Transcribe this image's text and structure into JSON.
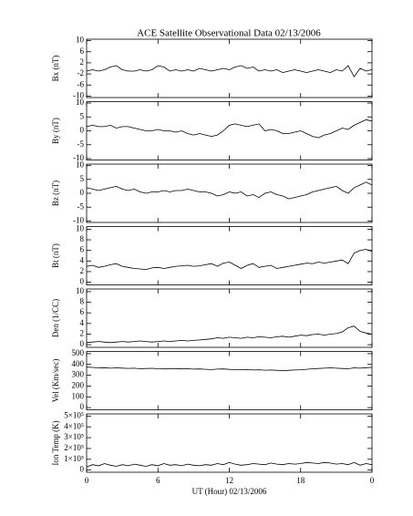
{
  "title": "ACE Satellite Observational Data   02/13/2006",
  "chart_data": [
    {
      "type": "line",
      "ylabel": "Bx (nT)",
      "ylim": [
        -10.5,
        10.5
      ],
      "yticks": [
        10,
        6,
        2,
        -2,
        -6,
        -10
      ],
      "xlim": [
        0,
        24
      ],
      "xticks": [
        0,
        6,
        12,
        18,
        {
          "value": 24,
          "label": "0"
        }
      ],
      "x": [
        0,
        0.5,
        1,
        1.5,
        2,
        2.5,
        3,
        3.5,
        4,
        4.5,
        5,
        5.5,
        6,
        6.5,
        7,
        7.5,
        8,
        8.5,
        9,
        9.5,
        10,
        10.5,
        11,
        11.5,
        12,
        12.5,
        13,
        13.5,
        14,
        14.5,
        15,
        15.5,
        16,
        16.5,
        17,
        17.5,
        18,
        18.5,
        19,
        19.5,
        20,
        20.5,
        21,
        21.5,
        22,
        22.5,
        23,
        23.5,
        24
      ],
      "series": [
        {
          "color": "#000000",
          "values": [
            -1,
            -0.5,
            -1,
            -0.5,
            0.5,
            1,
            -0.5,
            -1,
            -1,
            -0.5,
            -1,
            -0.5,
            1,
            0.5,
            -1,
            -0.5,
            -1,
            -0.5,
            -1,
            0,
            -0.5,
            -1,
            -0.5,
            0,
            -0.5,
            0.5,
            1,
            0,
            0.5,
            -1,
            -0.5,
            -1,
            -0.5,
            -1.5,
            -1,
            -0.5,
            -1,
            -1.5,
            -1,
            -0.5,
            -1,
            -1.5,
            -0.5,
            -1,
            1,
            -3,
            0,
            -1,
            -0.5
          ]
        }
      ]
    },
    {
      "type": "line",
      "ylabel": "By (nT)",
      "ylim": [
        -10.5,
        10.5
      ],
      "yticks": [
        10,
        5,
        0,
        -5,
        -10
      ],
      "xlim": [
        0,
        24
      ],
      "xticks": [
        0,
        6,
        12,
        18,
        {
          "value": 24,
          "label": "0"
        }
      ],
      "x": [
        0,
        0.5,
        1,
        1.5,
        2,
        2.5,
        3,
        3.5,
        4,
        4.5,
        5,
        5.5,
        6,
        6.5,
        7,
        7.5,
        8,
        8.5,
        9,
        9.5,
        10,
        10.5,
        11,
        11.5,
        12,
        12.5,
        13,
        13.5,
        14,
        14.5,
        15,
        15.5,
        16,
        16.5,
        17,
        17.5,
        18,
        18.5,
        19,
        19.5,
        20,
        20.5,
        21,
        21.5,
        22,
        22.5,
        23,
        23.5,
        24
      ],
      "series": [
        {
          "color": "#000000",
          "values": [
            1.5,
            2,
            1.5,
            1.5,
            2,
            1,
            1.5,
            1.5,
            1,
            0.5,
            0,
            0,
            0.5,
            0,
            0,
            -0.5,
            0,
            -1,
            -1.5,
            -1,
            -1.5,
            -2,
            -1.5,
            0,
            2,
            2.5,
            2,
            1.5,
            2,
            2.5,
            0,
            0.5,
            0,
            -1,
            -1,
            -0.5,
            0,
            -1,
            -2,
            -2.5,
            -1.5,
            -1,
            0,
            1,
            0.5,
            2,
            3,
            4,
            3.5
          ]
        }
      ]
    },
    {
      "type": "line",
      "ylabel": "Bz (nT)",
      "ylim": [
        -10.5,
        10.5
      ],
      "yticks": [
        10,
        5,
        0,
        -5,
        -10
      ],
      "xlim": [
        0,
        24
      ],
      "xticks": [
        0,
        6,
        12,
        18,
        {
          "value": 24,
          "label": "0"
        }
      ],
      "x": [
        0,
        0.5,
        1,
        1.5,
        2,
        2.5,
        3,
        3.5,
        4,
        4.5,
        5,
        5.5,
        6,
        6.5,
        7,
        7.5,
        8,
        8.5,
        9,
        9.5,
        10,
        10.5,
        11,
        11.5,
        12,
        12.5,
        13,
        13.5,
        14,
        14.5,
        15,
        15.5,
        16,
        16.5,
        17,
        17.5,
        18,
        18.5,
        19,
        19.5,
        20,
        20.5,
        21,
        21.5,
        22,
        22.5,
        23,
        23.5,
        24
      ],
      "series": [
        {
          "color": "#000000",
          "values": [
            2,
            1.5,
            1,
            1.5,
            2,
            2.5,
            1.5,
            1,
            1.5,
            0.5,
            0,
            0.5,
            0.5,
            1,
            0.5,
            1,
            1,
            1.5,
            1,
            0.5,
            0.5,
            0,
            -1,
            -0.5,
            0.5,
            0,
            0.5,
            -1,
            -0.5,
            -1.5,
            0,
            0.5,
            -0.5,
            -1,
            -2,
            -1.5,
            -1,
            -0.5,
            0.5,
            1,
            1.5,
            2,
            2.5,
            1,
            0,
            2,
            3,
            4,
            3
          ]
        }
      ]
    },
    {
      "type": "line",
      "ylabel": "Bt (nT)",
      "ylim": [
        -0.5,
        10.5
      ],
      "yticks": [
        10,
        8,
        6,
        4,
        2,
        0
      ],
      "xlim": [
        0,
        24
      ],
      "xticks": [
        0,
        6,
        12,
        18,
        {
          "value": 24,
          "label": "0"
        }
      ],
      "x": [
        0,
        0.5,
        1,
        1.5,
        2,
        2.5,
        3,
        3.5,
        4,
        4.5,
        5,
        5.5,
        6,
        6.5,
        7,
        7.5,
        8,
        8.5,
        9,
        9.5,
        10,
        10.5,
        11,
        11.5,
        12,
        12.5,
        13,
        13.5,
        14,
        14.5,
        15,
        15.5,
        16,
        16.5,
        17,
        17.5,
        18,
        18.5,
        19,
        19.5,
        20,
        20.5,
        21,
        21.5,
        22,
        22.5,
        23,
        23.5,
        24
      ],
      "series": [
        {
          "color": "#000000",
          "values": [
            3,
            3.2,
            2.8,
            3,
            3.3,
            3.5,
            3,
            2.8,
            2.6,
            2.5,
            2.4,
            2.7,
            2.8,
            2.6,
            2.8,
            3,
            3.1,
            3.2,
            3,
            3.1,
            3.3,
            3.5,
            3,
            3.6,
            3.8,
            3.2,
            2.6,
            3.2,
            3.5,
            2.8,
            3,
            3.2,
            2.6,
            2.8,
            3,
            3.2,
            3.4,
            3.6,
            3.5,
            3.8,
            3.6,
            3.8,
            4,
            4.2,
            3.5,
            5.5,
            6,
            6.2,
            5.8
          ]
        }
      ]
    },
    {
      "type": "line",
      "ylabel": "Den (1/CC)",
      "ylim": [
        -0.5,
        10.5
      ],
      "yticks": [
        10,
        8,
        6,
        4,
        2,
        0
      ],
      "xlim": [
        0,
        24
      ],
      "xticks": [
        0,
        6,
        12,
        18,
        {
          "value": 24,
          "label": "0"
        }
      ],
      "x": [
        0,
        0.5,
        1,
        1.5,
        2,
        2.5,
        3,
        3.5,
        4,
        4.5,
        5,
        5.5,
        6,
        6.5,
        7,
        7.5,
        8,
        8.5,
        9,
        9.5,
        10,
        10.5,
        11,
        11.5,
        12,
        12.5,
        13,
        13.5,
        14,
        14.5,
        15,
        15.5,
        16,
        16.5,
        17,
        17.5,
        18,
        18.5,
        19,
        19.5,
        20,
        20.5,
        21,
        21.5,
        22,
        22.5,
        23,
        23.5,
        24
      ],
      "series": [
        {
          "color": "#000000",
          "values": [
            0.4,
            0.5,
            0.6,
            0.5,
            0.4,
            0.5,
            0.6,
            0.5,
            0.6,
            0.7,
            0.6,
            0.5,
            0.6,
            0.7,
            0.6,
            0.7,
            0.8,
            0.7,
            0.8,
            0.9,
            1,
            1.1,
            1.3,
            1.2,
            1.4,
            1.3,
            1.2,
            1.4,
            1.3,
            1.5,
            1.4,
            1.3,
            1.5,
            1.6,
            1.4,
            1.6,
            1.8,
            1.7,
            1.9,
            2,
            1.8,
            2,
            2.1,
            2.4,
            3.2,
            3.5,
            2.5,
            2.2,
            2
          ]
        }
      ]
    },
    {
      "type": "line",
      "ylabel": "Vel (Km/sec)",
      "ylim": [
        -20,
        520
      ],
      "yticks": [
        500,
        400,
        300,
        200,
        100,
        0
      ],
      "xlim": [
        0,
        24
      ],
      "xticks": [
        0,
        6,
        12,
        18,
        {
          "value": 24,
          "label": "0"
        }
      ],
      "x": [
        0,
        0.5,
        1,
        1.5,
        2,
        2.5,
        3,
        3.5,
        4,
        4.5,
        5,
        5.5,
        6,
        6.5,
        7,
        7.5,
        8,
        8.5,
        9,
        9.5,
        10,
        10.5,
        11,
        11.5,
        12,
        12.5,
        13,
        13.5,
        14,
        14.5,
        15,
        15.5,
        16,
        16.5,
        17,
        17.5,
        18,
        18.5,
        19,
        19.5,
        20,
        20.5,
        21,
        21.5,
        22,
        22.5,
        23,
        23.5,
        24
      ],
      "series": [
        {
          "color": "#000000",
          "values": [
            375,
            372,
            368,
            370,
            365,
            368,
            366,
            363,
            365,
            360,
            362,
            364,
            360,
            358,
            360,
            362,
            358,
            360,
            356,
            358,
            355,
            352,
            356,
            358,
            354,
            352,
            350,
            352,
            348,
            350,
            346,
            348,
            345,
            342,
            345,
            348,
            350,
            355,
            360,
            362,
            365,
            368,
            365,
            362,
            360,
            368,
            365,
            370,
            372
          ]
        }
      ]
    },
    {
      "type": "line",
      "ylabel": "Ion Temp (K)",
      "ylim": [
        -20000,
        520000
      ],
      "yticks": [
        {
          "value": 500000,
          "label": "5×10⁵"
        },
        {
          "value": 400000,
          "label": "4×10⁵"
        },
        {
          "value": 300000,
          "label": "3×10⁵"
        },
        {
          "value": 200000,
          "label": "2×10⁵"
        },
        {
          "value": 100000,
          "label": "1×10⁵"
        },
        0
      ],
      "xlim": [
        0,
        24
      ],
      "xticks": [
        0,
        6,
        12,
        18,
        {
          "value": 24,
          "label": "0"
        }
      ],
      "xlabel": "UT (Hour)   02/13/2006",
      "x": [
        0,
        0.5,
        1,
        1.5,
        2,
        2.5,
        3,
        3.5,
        4,
        4.5,
        5,
        5.5,
        6,
        6.5,
        7,
        7.5,
        8,
        8.5,
        9,
        9.5,
        10,
        10.5,
        11,
        11.5,
        12,
        12.5,
        13,
        13.5,
        14,
        14.5,
        15,
        15.5,
        16,
        16.5,
        17,
        17.5,
        18,
        18.5,
        19,
        19.5,
        20,
        20.5,
        21,
        21.5,
        22,
        22.5,
        23,
        23.5,
        24
      ],
      "series": [
        {
          "color": "#000000",
          "values": [
            30000,
            50000,
            40000,
            60000,
            45000,
            35000,
            50000,
            40000,
            55000,
            45000,
            35000,
            50000,
            40000,
            60000,
            45000,
            50000,
            40000,
            55000,
            45000,
            40000,
            50000,
            45000,
            60000,
            50000,
            70000,
            55000,
            45000,
            50000,
            60000,
            55000,
            50000,
            65000,
            55000,
            50000,
            60000,
            55000,
            60000,
            70000,
            65000,
            60000,
            70000,
            65000,
            55000,
            60000,
            50000,
            70000,
            45000,
            60000,
            50000
          ]
        }
      ]
    }
  ]
}
